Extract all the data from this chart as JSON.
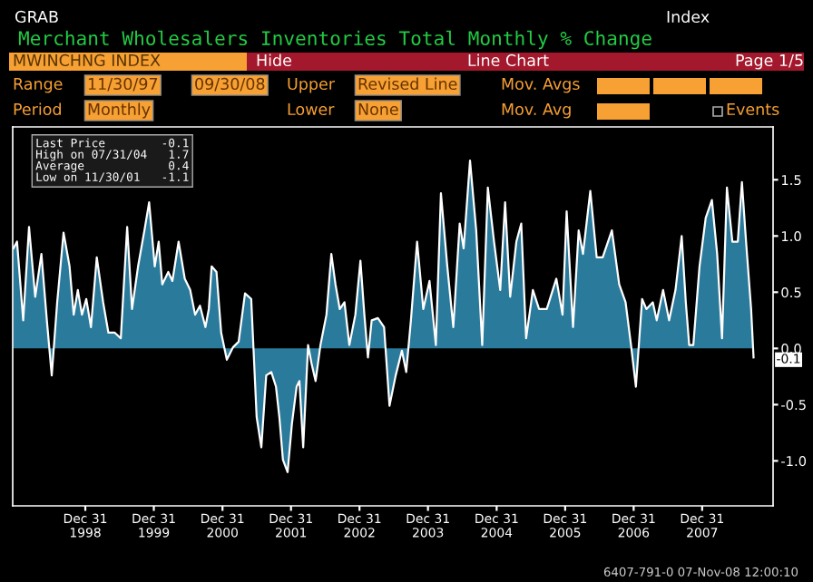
{
  "chart_data": {
    "type": "area",
    "title": "Merchant Wholesalers Inventories Total Monthly % Change",
    "x": [
      "1997-12-13",
      "1998-01-01",
      "1998-02-03",
      "1998-03-06",
      "1998-04-08",
      "1998-05-11",
      "1998-06-09",
      "1998-07-05",
      "1998-08-03",
      "1998-09-06",
      "1998-10-08",
      "1998-10-30",
      "1998-11-21",
      "1998-12-13",
      "1999-01-05",
      "1999-01-30",
      "1999-03-02",
      "1999-04-05",
      "1999-05-03",
      "1999-06-06",
      "1999-07-08",
      "1999-08-11",
      "1999-09-06",
      "1999-10-08",
      "1999-11-11",
      "1999-12-06",
      "2000-01-05",
      "2000-01-26",
      "2000-02-14",
      "2000-03-17",
      "2000-04-08",
      "2000-05-11",
      "2000-06-13",
      "2000-07-12",
      "2000-08-07",
      "2000-09-02",
      "2000-10-01",
      "2000-10-19",
      "2000-11-03",
      "2000-11-29",
      "2000-12-24",
      "2001-01-23",
      "2001-02-25",
      "2001-03-27",
      "2001-04-30",
      "2001-06-02",
      "2001-07-01",
      "2001-07-26",
      "2001-08-21",
      "2001-09-17",
      "2001-10-12",
      "2001-10-30",
      "2001-11-18",
      "2001-12-13",
      "2002-01-05",
      "2002-01-30",
      "2002-02-14",
      "2002-03-06",
      "2002-04-01",
      "2002-04-19",
      "2002-05-11",
      "2002-06-06",
      "2002-07-08",
      "2002-08-03",
      "2002-08-25",
      "2002-09-17",
      "2002-10-12",
      "2002-11-07",
      "2002-12-09",
      "2003-01-05",
      "2003-01-26",
      "2003-02-14",
      "2003-03-06",
      "2003-04-08",
      "2003-05-11",
      "2003-06-09",
      "2003-07-12",
      "2003-08-14",
      "2003-09-06",
      "2003-10-01",
      "2003-11-03",
      "2003-12-06",
      "2004-01-08",
      "2004-02-11",
      "2004-03-09",
      "2004-04-12",
      "2004-05-14",
      "2004-06-17",
      "2004-07-08",
      "2004-08-11",
      "2004-09-13",
      "2004-10-15",
      "2004-11-14",
      "2004-12-17",
      "2005-01-19",
      "2005-02-14",
      "2005-03-13",
      "2005-04-15",
      "2005-05-11",
      "2005-06-06",
      "2005-07-12",
      "2005-08-14",
      "2005-09-24",
      "2005-11-14",
      "2005-12-17",
      "2006-01-08",
      "2006-02-11",
      "2006-03-13",
      "2006-04-05",
      "2006-05-14",
      "2006-06-17",
      "2006-07-19",
      "2006-09-06",
      "2006-10-15",
      "2006-11-18",
      "2006-12-17",
      "2007-01-12",
      "2007-02-14",
      "2007-03-09",
      "2007-04-12",
      "2007-05-03",
      "2007-06-06",
      "2007-07-08",
      "2007-08-11",
      "2007-09-13",
      "2007-10-05",
      "2007-10-23",
      "2007-11-14",
      "2007-12-17",
      "2008-01-19",
      "2008-02-21",
      "2008-03-20",
      "2008-04-15",
      "2008-05-11",
      "2008-06-09",
      "2008-07-08",
      "2008-07-30",
      "2008-08-21",
      "2008-09-17",
      "2008-09-30"
    ],
    "series": [
      {
        "color": "#2a7a9c",
        "values": [
          0.89,
          0.95,
          0.25,
          1.08,
          0.46,
          0.84,
          0.25,
          -0.24,
          0.41,
          1.03,
          0.73,
          0.3,
          0.52,
          0.3,
          0.44,
          0.19,
          0.81,
          0.41,
          0.14,
          0.14,
          0.09,
          1.08,
          0.35,
          0.73,
          1.05,
          1.3,
          0.73,
          0.95,
          0.57,
          0.68,
          0.6,
          0.95,
          0.62,
          0.52,
          0.3,
          0.38,
          0.19,
          0.35,
          0.73,
          0.68,
          0.14,
          -0.1,
          0.01,
          0.06,
          0.49,
          0.44,
          -0.61,
          -0.88,
          -0.24,
          -0.21,
          -0.34,
          -0.61,
          -0.99,
          -1.1,
          -0.67,
          -0.34,
          -0.29,
          -0.88,
          0.03,
          -0.13,
          -0.29,
          0.03,
          0.3,
          0.84,
          0.57,
          0.35,
          0.41,
          0.03,
          0.3,
          0.78,
          0.3,
          -0.08,
          0.25,
          0.27,
          0.19,
          -0.51,
          -0.24,
          -0.02,
          -0.21,
          0.25,
          0.95,
          0.35,
          0.6,
          0.03,
          1.38,
          0.73,
          0.19,
          1.11,
          0.89,
          1.67,
          1.05,
          0.03,
          1.43,
          0.95,
          0.52,
          1.3,
          0.46,
          0.95,
          1.11,
          0.09,
          0.52,
          0.35,
          0.35,
          0.62,
          0.3,
          1.22,
          0.19,
          1.05,
          0.84,
          1.4,
          0.81,
          0.81,
          1.05,
          0.57,
          0.41,
          0.03,
          -0.34,
          0.44,
          0.35,
          0.41,
          0.25,
          0.52,
          0.25,
          0.52,
          1.0,
          0.41,
          0.03,
          0.03,
          0.73,
          1.16,
          1.32,
          0.84,
          0.09,
          1.43,
          0.95,
          0.95,
          1.48,
          0.95,
          0.35,
          -0.08
        ]
      }
    ],
    "xlim": [
      "1997-12-09",
      "2009-01-12"
    ],
    "ylim": [
      -1.4,
      1.97
    ],
    "xticks": [
      {
        "value": "1998-12-31",
        "label": "Dec 31\n1998"
      },
      {
        "value": "1999-12-31",
        "label": "Dec 31\n1999"
      },
      {
        "value": "2000-12-31",
        "label": "Dec 31\n2000"
      },
      {
        "value": "2001-12-31",
        "label": "Dec 31\n2001"
      },
      {
        "value": "2002-12-31",
        "label": "Dec 31\n2002"
      },
      {
        "value": "2003-12-31",
        "label": "Dec 31\n2003"
      },
      {
        "value": "2004-12-31",
        "label": "Dec 31\n2004"
      },
      {
        "value": "2005-12-31",
        "label": "Dec 31\n2005"
      },
      {
        "value": "2006-12-31",
        "label": "Dec 31\n2006"
      },
      {
        "value": "2007-12-31",
        "label": "Dec 31\n2007"
      }
    ],
    "yticks": [
      {
        "value": -1,
        "label": "-1.0"
      },
      {
        "value": -0.5,
        "label": "-0.5"
      },
      {
        "value": 0,
        "label": "0.0"
      },
      {
        "value": 0.5,
        "label": "0.5"
      },
      {
        "value": 1,
        "label": "1.0"
      },
      {
        "value": 1.5,
        "label": "1.5"
      }
    ],
    "grid": false,
    "annotations": [
      "GRAB",
      "Index",
      "MWINCHNG INDEX",
      "Hide",
      "Line Chart",
      "Page 1/5",
      "Range",
      "11/30/97",
      "09/30/08",
      "Upper",
      "Revised Line",
      "Mov. Avgs",
      "Period",
      "Monthly",
      "Lower",
      "None",
      "Mov. Avg",
      "Events",
      "Last Price        -0.1",
      "High on 07/31/04   1.7",
      "Average            0.4",
      "Low on 11/30/01   -1.1",
      "6407-791-0 07-Nov-08 12:00:10",
      {
        "text": "-0.1",
        "x": "2008-09-30",
        "y": -0.1
      }
    ]
  }
}
